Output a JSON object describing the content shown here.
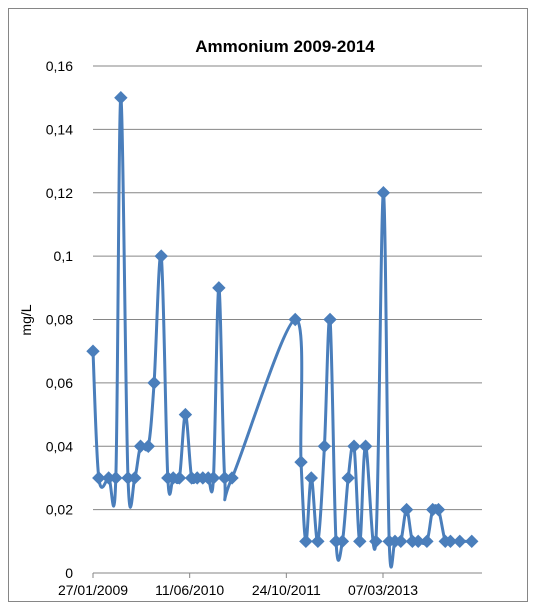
{
  "chart_data": {
    "type": "line",
    "title": "Ammonium 2009-2014",
    "xlabel": "",
    "ylabel": "mg/L",
    "ylim": [
      0,
      0.16
    ],
    "yticks": [
      0,
      0.02,
      0.04,
      0.06,
      0.08,
      0.1,
      0.12,
      0.14,
      0.16
    ],
    "ytick_labels": [
      "0",
      "0,02",
      "0,04",
      "0,06",
      "0,08",
      "0,1",
      "0,12",
      "0,14",
      "0,16"
    ],
    "xlim": [
      "2009-01-27",
      "2014-08-01"
    ],
    "xticks": [
      "2009-01-27",
      "2010-06-11",
      "2011-10-24",
      "2013-03-07"
    ],
    "xtick_labels": [
      "27/01/2009",
      "11/06/2010",
      "24/10/2011",
      "07/03/2013"
    ],
    "grid": "horizontal",
    "legend": "none",
    "color": "#4a7ebb",
    "marker": "diamond",
    "series": [
      {
        "x": [
          "2009-01-27",
          "2009-02-26",
          "2009-04-18",
          "2009-05-25",
          "2009-06-20",
          "2009-07-27",
          "2009-08-31",
          "2009-09-30",
          "2009-11-09",
          "2009-12-09",
          "2010-01-15",
          "2010-02-18",
          "2010-03-18",
          "2010-04-19",
          "2010-05-20",
          "2010-06-21",
          "2010-07-20",
          "2010-08-18",
          "2010-09-15",
          "2010-10-12",
          "2010-11-09",
          "2010-12-09",
          "2011-01-16",
          "2011-12-09",
          "2012-01-08",
          "2012-02-02",
          "2012-03-01",
          "2012-04-04",
          "2012-05-08",
          "2012-06-06",
          "2012-07-07",
          "2012-08-09",
          "2012-09-08",
          "2012-10-08",
          "2012-11-07",
          "2012-12-07",
          "2013-01-29",
          "2013-03-09",
          "2013-04-08",
          "2013-05-08",
          "2013-06-07",
          "2013-07-07",
          "2013-08-06",
          "2013-09-05",
          "2013-10-20",
          "2013-11-19",
          "2013-12-19",
          "2014-01-23",
          "2014-02-19",
          "2014-04-08",
          "2014-06-09"
        ],
        "y": [
          0.07,
          0.03,
          0.03,
          0.03,
          0.15,
          0.03,
          0.03,
          0.04,
          0.04,
          0.06,
          0.1,
          0.03,
          0.03,
          0.03,
          0.05,
          0.03,
          0.03,
          0.03,
          0.03,
          0.03,
          0.09,
          0.03,
          0.03,
          0.08,
          0.035,
          0.01,
          0.03,
          0.01,
          0.04,
          0.08,
          0.01,
          0.01,
          0.03,
          0.04,
          0.01,
          0.04,
          0.01,
          0.12,
          0.01,
          0.01,
          0.01,
          0.02,
          0.01,
          0.01,
          0.01,
          0.02,
          0.02,
          0.01,
          0.01,
          0.01,
          0.01
        ]
      }
    ]
  }
}
